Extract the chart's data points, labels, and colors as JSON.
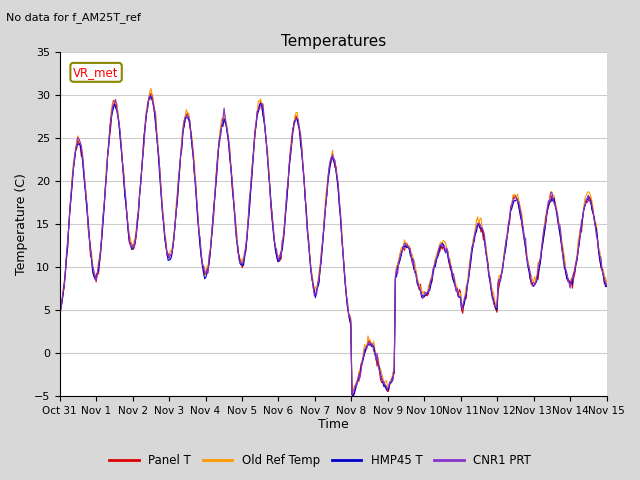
{
  "title": "Temperatures",
  "suptitle": "No data for f_AM25T_ref",
  "ylabel": "Temperature (C)",
  "xlabel": "Time",
  "ylim": [
    -5,
    35
  ],
  "tick_labels": [
    "Oct 31",
    "Nov 1",
    "Nov 2",
    "Nov 3",
    "Nov 4",
    "Nov 5",
    "Nov 6",
    "Nov 7",
    "Nov 8",
    "Nov 9",
    "Nov 10",
    "Nov 11",
    "Nov 12",
    "Nov 13",
    "Nov 14",
    "Nov 15"
  ],
  "annotation_box": "VR_met",
  "legend_labels": [
    "Panel T",
    "Old Ref Temp",
    "HMP45 T",
    "CNR1 PRT"
  ],
  "line_colors": [
    "#dd0000",
    "#ff9900",
    "#0000cc",
    "#8833cc"
  ],
  "background_color": "#d8d8d8",
  "plot_bg_color": "#ffffff",
  "n_points": 480
}
